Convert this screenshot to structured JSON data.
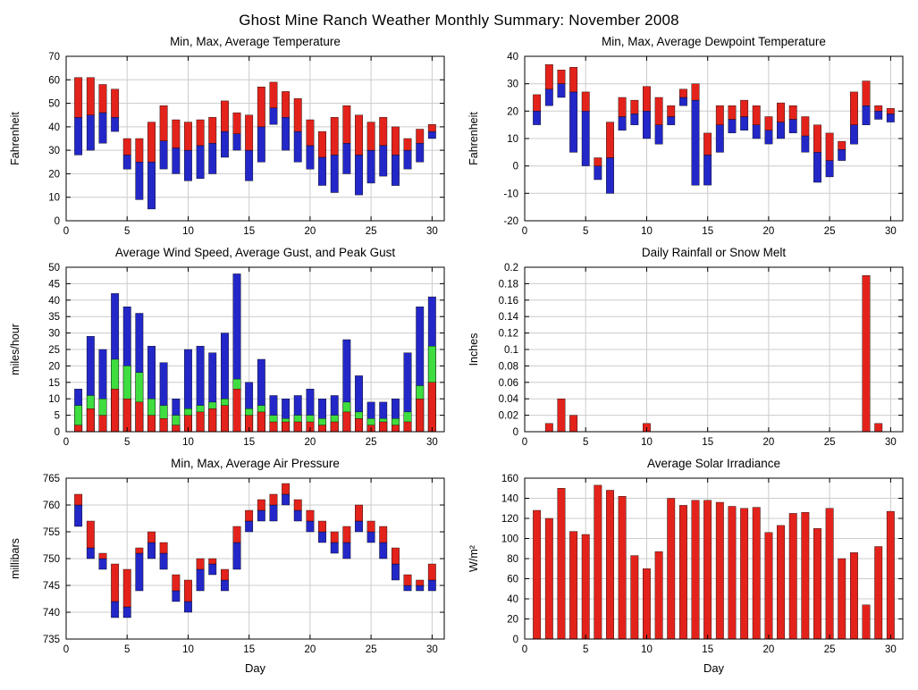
{
  "page_title": "Ghost Mine Ranch Weather Monthly Summary: November 2008",
  "xlabel": "Day",
  "colors": {
    "max_red": "#e3231b",
    "min_blue": "#2327c8",
    "gust_green": "#3fdd3f",
    "grid": "#cccccc",
    "axis": "#000000"
  },
  "chart_data": [
    {
      "type": "range",
      "title": "Min, Max, Average Temperature",
      "ylabel": "Fahrenheit",
      "ylim": [
        0,
        70
      ],
      "ytick": 10,
      "xlim": [
        0,
        31
      ],
      "xticks": [
        0,
        5,
        10,
        15,
        20,
        25,
        30
      ],
      "show_xlabel": false,
      "min": [
        28,
        30,
        33,
        38,
        22,
        9,
        5,
        22,
        20,
        17,
        18,
        20,
        27,
        30,
        17,
        25,
        41,
        30,
        25,
        22,
        15,
        12,
        20,
        11,
        16,
        19,
        15,
        22,
        25,
        35
      ],
      "avg": [
        44,
        45,
        46,
        44,
        28,
        25,
        25,
        34,
        31,
        30,
        32,
        33,
        38,
        37,
        30,
        40,
        48,
        44,
        38,
        32,
        27,
        28,
        33,
        28,
        30,
        32,
        28,
        30,
        33,
        38
      ],
      "max": [
        61,
        61,
        58,
        56,
        35,
        35,
        42,
        49,
        43,
        42,
        43,
        44,
        51,
        46,
        45,
        57,
        59,
        55,
        52,
        43,
        38,
        44,
        49,
        45,
        42,
        44,
        40,
        35,
        39,
        41
      ]
    },
    {
      "type": "range",
      "title": "Min, Max, Average Dewpoint Temperature",
      "ylabel": "Fahrenheit",
      "ylim": [
        -20,
        40
      ],
      "ytick": 10,
      "xlim": [
        0,
        31
      ],
      "xticks": [
        0,
        5,
        10,
        15,
        20,
        25,
        30
      ],
      "show_xlabel": false,
      "min": [
        15,
        22,
        25,
        5,
        0,
        -5,
        -10,
        13,
        15,
        10,
        8,
        15,
        22,
        -7,
        -7,
        5,
        12,
        13,
        10,
        8,
        10,
        12,
        5,
        -6,
        -4,
        2,
        8,
        15,
        17,
        16
      ],
      "avg": [
        20,
        28,
        30,
        27,
        20,
        0,
        3,
        18,
        19,
        20,
        15,
        18,
        25,
        24,
        4,
        15,
        17,
        18,
        15,
        13,
        16,
        17,
        11,
        5,
        2,
        6,
        15,
        22,
        20,
        19
      ],
      "max": [
        26,
        37,
        35,
        36,
        27,
        3,
        16,
        25,
        24,
        29,
        25,
        22,
        28,
        30,
        12,
        22,
        22,
        24,
        22,
        18,
        23,
        22,
        18,
        15,
        12,
        9,
        27,
        31,
        22,
        21
      ]
    },
    {
      "type": "layer",
      "title": "Average Wind Speed, Average Gust, and Peak Gust",
      "ylabel": "miles/hour",
      "ylim": [
        0,
        50
      ],
      "ytick": 5,
      "xlim": [
        0,
        31
      ],
      "xticks": [
        0,
        5,
        10,
        15,
        20,
        25,
        30
      ],
      "show_xlabel": false,
      "avg": [
        2,
        7,
        5,
        13,
        10,
        9,
        5,
        4,
        2,
        5,
        6,
        7,
        8,
        13,
        5,
        6,
        3,
        3,
        3,
        3,
        2,
        3,
        6,
        4,
        2,
        3,
        2,
        3,
        10,
        15
      ],
      "gust": [
        8,
        11,
        10,
        22,
        20,
        18,
        10,
        8,
        5,
        7,
        8,
        9,
        10,
        16,
        7,
        8,
        5,
        4,
        5,
        5,
        4,
        5,
        9,
        6,
        4,
        4,
        4,
        6,
        14,
        26
      ],
      "peak": [
        13,
        29,
        25,
        42,
        38,
        36,
        26,
        21,
        10,
        25,
        26,
        24,
        30,
        48,
        15,
        22,
        11,
        10,
        11,
        13,
        10,
        11,
        28,
        17,
        9,
        9,
        10,
        24,
        38,
        41
      ]
    },
    {
      "type": "bar",
      "title": "Daily Rainfall or Snow Melt",
      "ylabel": "Inches",
      "ylim": [
        0,
        0.2
      ],
      "ytick": 0.02,
      "xlim": [
        0,
        31
      ],
      "xticks": [
        0,
        5,
        10,
        15,
        20,
        25,
        30
      ],
      "show_xlabel": false,
      "values": [
        0,
        0.01,
        0.04,
        0.02,
        0,
        0,
        0,
        0,
        0,
        0.01,
        0,
        0,
        0,
        0,
        0,
        0,
        0,
        0,
        0,
        0,
        0,
        0,
        0,
        0,
        0,
        0,
        0,
        0.19,
        0.01,
        0
      ]
    },
    {
      "type": "range",
      "title": "Min, Max, Average Air Pressure",
      "ylabel": "millibars",
      "ylim": [
        735,
        765
      ],
      "ytick": 5,
      "xlim": [
        0,
        31
      ],
      "xticks": [
        0,
        5,
        10,
        15,
        20,
        25,
        30
      ],
      "show_xlabel": true,
      "min": [
        756,
        750,
        748,
        739,
        739,
        744,
        750,
        748,
        742,
        740,
        744,
        747,
        744,
        748,
        755,
        757,
        757,
        760,
        757,
        755,
        753,
        751,
        750,
        755,
        753,
        750,
        746,
        744,
        744,
        744
      ],
      "avg": [
        760,
        752,
        750,
        742,
        741,
        751,
        753,
        751,
        744,
        742,
        748,
        749,
        746,
        753,
        757,
        759,
        760,
        762,
        759,
        757,
        755,
        753,
        753,
        757,
        755,
        753,
        749,
        745,
        745,
        746
      ],
      "max": [
        762,
        757,
        751,
        749,
        748,
        752,
        755,
        753,
        747,
        746,
        750,
        750,
        748,
        756,
        759,
        761,
        762,
        764,
        761,
        759,
        757,
        755,
        756,
        760,
        757,
        756,
        752,
        747,
        746,
        749
      ]
    },
    {
      "type": "bar",
      "title": "Average Solar Irradiance",
      "ylabel": "W/m²",
      "ylim": [
        0,
        160
      ],
      "ytick": 20,
      "xlim": [
        0,
        31
      ],
      "xticks": [
        0,
        5,
        10,
        15,
        20,
        25,
        30
      ],
      "show_xlabel": true,
      "values": [
        128,
        120,
        150,
        107,
        104,
        153,
        148,
        142,
        83,
        70,
        87,
        140,
        133,
        138,
        138,
        136,
        132,
        130,
        131,
        106,
        113,
        125,
        126,
        110,
        130,
        80,
        86,
        34,
        92,
        127
      ]
    }
  ]
}
